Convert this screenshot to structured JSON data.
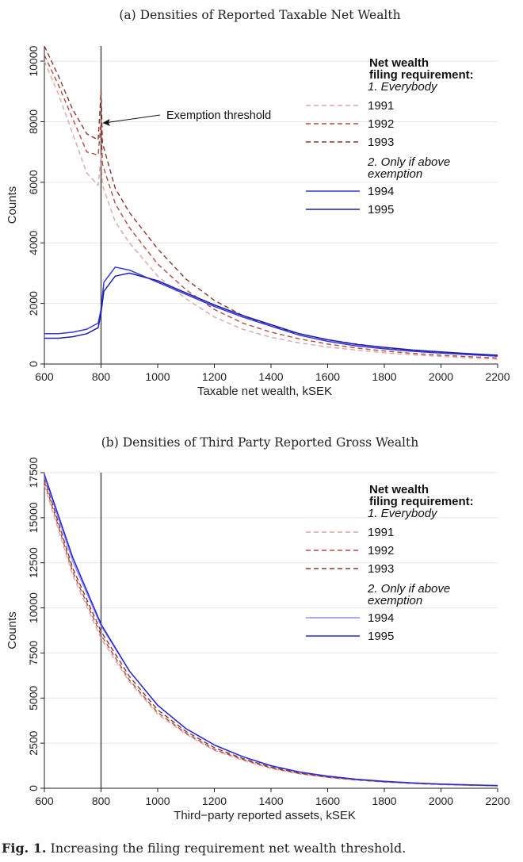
{
  "figure": {
    "caption_label": "Fig. 1.",
    "caption_text": " Increasing the filing requirement net wealth threshold."
  },
  "colors": {
    "c1991": "#d9a7a3",
    "c1992": "#b24a42",
    "c1993": "#86382f",
    "c1994_a": "#3437d8",
    "c1995_a": "#1f1fae",
    "c1994_b": "#8e92ee",
    "c1995_b": "#2a2ad2",
    "grid": "#e6e6e6",
    "axis": "#222222",
    "threshold": "#333333"
  },
  "chart_data": [
    {
      "id": "a",
      "type": "line",
      "title": "(a) Densities of Reported Taxable Net Wealth",
      "xlabel": "Taxable net wealth, kSEK",
      "ylabel": "Counts",
      "xlim": [
        600,
        2200
      ],
      "ylim": [
        0,
        10500
      ],
      "xticks": [
        600,
        800,
        1000,
        1200,
        1400,
        1600,
        1800,
        2000,
        2200
      ],
      "yticks": [
        0,
        2000,
        4000,
        6000,
        8000,
        10000
      ],
      "grid": true,
      "threshold_x": 800,
      "annotation": {
        "text": "Exemption threshold",
        "x": 800,
        "y": 8000
      },
      "legend": {
        "placement": "top-right",
        "title_line1": "Net wealth",
        "title_line2": "filing requirement:",
        "group1": "1. Everybody",
        "group2_line1": "2. Only if above",
        "group2_line2": "exemption"
      },
      "series": [
        {
          "name": "1991",
          "dash": true,
          "color_key": "c1991",
          "points": [
            [
              600,
              10000
            ],
            [
              650,
              8900
            ],
            [
              700,
              7600
            ],
            [
              750,
              6300
            ],
            [
              790,
              5900
            ],
            [
              800,
              6900
            ],
            [
              805,
              5900
            ],
            [
              850,
              4700
            ],
            [
              900,
              4000
            ],
            [
              1000,
              2900
            ],
            [
              1100,
              2150
            ],
            [
              1200,
              1550
            ],
            [
              1300,
              1150
            ],
            [
              1400,
              880
            ],
            [
              1500,
              700
            ],
            [
              1600,
              560
            ],
            [
              1700,
              460
            ],
            [
              1800,
              370
            ],
            [
              1900,
              300
            ],
            [
              2000,
              250
            ],
            [
              2100,
              200
            ],
            [
              2200,
              160
            ]
          ]
        },
        {
          "name": "1992",
          "dash": true,
          "color_key": "c1992",
          "points": [
            [
              600,
              10200
            ],
            [
              650,
              9200
            ],
            [
              700,
              8100
            ],
            [
              750,
              7000
            ],
            [
              790,
              6900
            ],
            [
              800,
              8000
            ],
            [
              805,
              6600
            ],
            [
              850,
              5300
            ],
            [
              900,
              4500
            ],
            [
              1000,
              3300
            ],
            [
              1100,
              2450
            ],
            [
              1200,
              1800
            ],
            [
              1300,
              1350
            ],
            [
              1400,
              1050
            ],
            [
              1500,
              830
            ],
            [
              1600,
              660
            ],
            [
              1700,
              530
            ],
            [
              1800,
              430
            ],
            [
              1900,
              350
            ],
            [
              2000,
              290
            ],
            [
              2100,
              240
            ],
            [
              2200,
              200
            ]
          ]
        },
        {
          "name": "1993",
          "dash": true,
          "color_key": "c1993",
          "points": [
            [
              600,
              10500
            ],
            [
              650,
              9500
            ],
            [
              700,
              8400
            ],
            [
              750,
              7600
            ],
            [
              790,
              7400
            ],
            [
              800,
              9000
            ],
            [
              805,
              7300
            ],
            [
              850,
              5800
            ],
            [
              900,
              5000
            ],
            [
              1000,
              3800
            ],
            [
              1100,
              2800
            ],
            [
              1200,
              2100
            ],
            [
              1300,
              1600
            ],
            [
              1400,
              1250
            ],
            [
              1500,
              1000
            ],
            [
              1600,
              800
            ],
            [
              1700,
              660
            ],
            [
              1800,
              540
            ],
            [
              1900,
              450
            ],
            [
              2000,
              370
            ],
            [
              2100,
              310
            ],
            [
              2200,
              260
            ]
          ]
        },
        {
          "name": "1994",
          "dash": false,
          "color_key": "c1994_a",
          "points": [
            [
              600,
              1000
            ],
            [
              650,
              1000
            ],
            [
              700,
              1050
            ],
            [
              750,
              1150
            ],
            [
              790,
              1350
            ],
            [
              800,
              1800
            ],
            [
              810,
              2700
            ],
            [
              850,
              3200
            ],
            [
              900,
              3100
            ],
            [
              1000,
              2700
            ],
            [
              1100,
              2300
            ],
            [
              1200,
              1900
            ],
            [
              1300,
              1550
            ],
            [
              1400,
              1250
            ],
            [
              1500,
              950
            ],
            [
              1600,
              750
            ],
            [
              1700,
              600
            ],
            [
              1800,
              500
            ],
            [
              1900,
              420
            ],
            [
              2000,
              360
            ],
            [
              2100,
              310
            ],
            [
              2200,
              260
            ]
          ]
        },
        {
          "name": "1995",
          "dash": false,
          "color_key": "c1995_a",
          "points": [
            [
              600,
              850
            ],
            [
              650,
              850
            ],
            [
              700,
              900
            ],
            [
              750,
              1000
            ],
            [
              790,
              1200
            ],
            [
              800,
              1700
            ],
            [
              810,
              2400
            ],
            [
              850,
              2900
            ],
            [
              900,
              3000
            ],
            [
              1000,
              2750
            ],
            [
              1100,
              2350
            ],
            [
              1200,
              1950
            ],
            [
              1300,
              1600
            ],
            [
              1400,
              1300
            ],
            [
              1500,
              1000
            ],
            [
              1600,
              800
            ],
            [
              1700,
              650
            ],
            [
              1800,
              550
            ],
            [
              1900,
              460
            ],
            [
              2000,
              400
            ],
            [
              2100,
              340
            ],
            [
              2200,
              290
            ]
          ]
        }
      ]
    },
    {
      "id": "b",
      "type": "line",
      "title": "(b) Densities of Third Party Reported Gross Wealth",
      "xlabel": "Third−party reported assets, kSEK",
      "ylabel": "Counts",
      "xlim": [
        600,
        2200
      ],
      "ylim": [
        0,
        17500
      ],
      "xticks": [
        600,
        800,
        1000,
        1200,
        1400,
        1600,
        1800,
        2000,
        2200
      ],
      "yticks": [
        0,
        2500,
        5000,
        7500,
        10000,
        12500,
        15000,
        17500
      ],
      "grid": true,
      "threshold_x": 800,
      "legend": {
        "placement": "top-right",
        "title_line1": "Net wealth",
        "title_line2": "filing requirement:",
        "group1": "1. Everybody",
        "group2_line1": "2. Only if above",
        "group2_line2": "exemption"
      },
      "series": [
        {
          "name": "1991",
          "dash": true,
          "color_key": "c1991",
          "points": [
            [
              600,
              16800
            ],
            [
              700,
              11800
            ],
            [
              800,
              8300
            ],
            [
              900,
              5900
            ],
            [
              1000,
              4100
            ],
            [
              1100,
              3000
            ],
            [
              1200,
              2100
            ],
            [
              1300,
              1550
            ],
            [
              1400,
              1100
            ],
            [
              1500,
              800
            ],
            [
              1600,
              600
            ],
            [
              1700,
              450
            ],
            [
              1800,
              340
            ],
            [
              1900,
              260
            ],
            [
              2000,
              200
            ],
            [
              2100,
              160
            ],
            [
              2200,
              130
            ]
          ]
        },
        {
          "name": "1992",
          "dash": true,
          "color_key": "c1992",
          "points": [
            [
              600,
              17000
            ],
            [
              700,
              12000
            ],
            [
              800,
              8500
            ],
            [
              900,
              6000
            ],
            [
              1000,
              4200
            ],
            [
              1100,
              3050
            ],
            [
              1200,
              2150
            ],
            [
              1300,
              1600
            ],
            [
              1400,
              1130
            ],
            [
              1500,
              820
            ],
            [
              1600,
              610
            ],
            [
              1700,
              460
            ],
            [
              1800,
              350
            ],
            [
              1900,
              270
            ],
            [
              2000,
              210
            ],
            [
              2100,
              170
            ],
            [
              2200,
              135
            ]
          ]
        },
        {
          "name": "1993",
          "dash": true,
          "color_key": "c1993",
          "points": [
            [
              600,
              17200
            ],
            [
              700,
              12200
            ],
            [
              800,
              8700
            ],
            [
              900,
              6200
            ],
            [
              1000,
              4350
            ],
            [
              1100,
              3150
            ],
            [
              1200,
              2250
            ],
            [
              1300,
              1650
            ],
            [
              1400,
              1170
            ],
            [
              1500,
              850
            ],
            [
              1600,
              630
            ],
            [
              1700,
              480
            ],
            [
              1800,
              365
            ],
            [
              1900,
              280
            ],
            [
              2000,
              220
            ],
            [
              2100,
              175
            ],
            [
              2200,
              140
            ]
          ]
        },
        {
          "name": "1994",
          "dash": false,
          "color_key": "c1994_b",
          "points": [
            [
              600,
              17300
            ],
            [
              700,
              12600
            ],
            [
              800,
              9000
            ],
            [
              900,
              6500
            ],
            [
              1000,
              4600
            ],
            [
              1100,
              3300
            ],
            [
              1200,
              2400
            ],
            [
              1300,
              1750
            ],
            [
              1400,
              1250
            ],
            [
              1500,
              900
            ],
            [
              1600,
              670
            ],
            [
              1700,
              500
            ],
            [
              1800,
              380
            ],
            [
              1900,
              290
            ],
            [
              2000,
              230
            ],
            [
              2100,
              185
            ],
            [
              2200,
              150
            ]
          ]
        },
        {
          "name": "1995",
          "dash": false,
          "color_key": "c1995_b",
          "points": [
            [
              600,
              17400
            ],
            [
              700,
              12800
            ],
            [
              800,
              9100
            ],
            [
              900,
              6500
            ],
            [
              1000,
              4600
            ],
            [
              1100,
              3300
            ],
            [
              1200,
              2400
            ],
            [
              1300,
              1750
            ],
            [
              1400,
              1250
            ],
            [
              1500,
              900
            ],
            [
              1600,
              670
            ],
            [
              1700,
              500
            ],
            [
              1800,
              385
            ],
            [
              1900,
              295
            ],
            [
              2000,
              235
            ],
            [
              2100,
              190
            ],
            [
              2200,
              150
            ]
          ]
        }
      ]
    }
  ]
}
